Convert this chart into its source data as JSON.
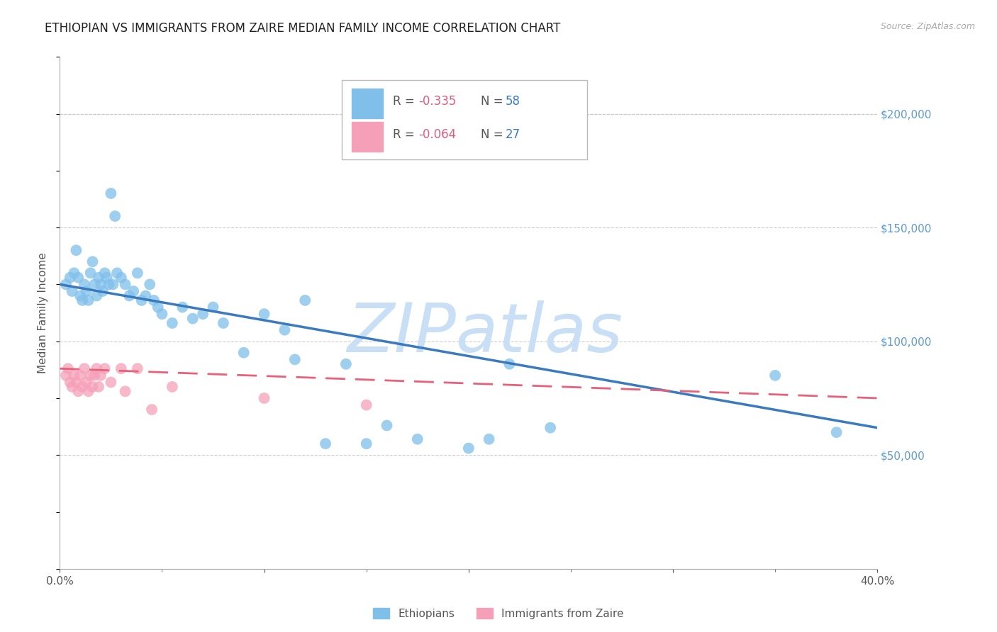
{
  "title": "ETHIOPIAN VS IMMIGRANTS FROM ZAIRE MEDIAN FAMILY INCOME CORRELATION CHART",
  "source": "Source: ZipAtlas.com",
  "ylabel": "Median Family Income",
  "xlim": [
    0.0,
    0.4
  ],
  "ylim": [
    0,
    225000
  ],
  "yticks": [
    50000,
    100000,
    150000,
    200000
  ],
  "ytick_labels": [
    "$50,000",
    "$100,000",
    "$150,000",
    "$200,000"
  ],
  "blue_color": "#7fbfea",
  "pink_color": "#f5a0b8",
  "line_blue": "#3a7abf",
  "line_pink": "#e8607a",
  "watermark": "ZIPatlas",
  "watermark_color": "#c8dff5",
  "background_color": "#ffffff",
  "grid_color": "#cccccc",
  "ethiopians_x": [
    0.003,
    0.005,
    0.006,
    0.007,
    0.008,
    0.009,
    0.01,
    0.011,
    0.012,
    0.013,
    0.014,
    0.015,
    0.016,
    0.017,
    0.018,
    0.019,
    0.02,
    0.021,
    0.022,
    0.023,
    0.024,
    0.025,
    0.026,
    0.027,
    0.028,
    0.03,
    0.032,
    0.034,
    0.036,
    0.038,
    0.04,
    0.042,
    0.044,
    0.046,
    0.048,
    0.05,
    0.055,
    0.06,
    0.065,
    0.07,
    0.075,
    0.08,
    0.09,
    0.1,
    0.11,
    0.115,
    0.12,
    0.13,
    0.14,
    0.15,
    0.16,
    0.175,
    0.2,
    0.21,
    0.22,
    0.24,
    0.35,
    0.38
  ],
  "ethiopians_y": [
    125000,
    128000,
    122000,
    130000,
    140000,
    128000,
    120000,
    118000,
    125000,
    122000,
    118000,
    130000,
    135000,
    125000,
    120000,
    128000,
    125000,
    122000,
    130000,
    128000,
    125000,
    165000,
    125000,
    155000,
    130000,
    128000,
    125000,
    120000,
    122000,
    130000,
    118000,
    120000,
    125000,
    118000,
    115000,
    112000,
    108000,
    115000,
    110000,
    112000,
    115000,
    108000,
    95000,
    112000,
    105000,
    92000,
    118000,
    55000,
    90000,
    55000,
    63000,
    57000,
    53000,
    57000,
    90000,
    62000,
    85000,
    60000
  ],
  "zaire_x": [
    0.003,
    0.004,
    0.005,
    0.006,
    0.007,
    0.008,
    0.009,
    0.01,
    0.011,
    0.012,
    0.013,
    0.014,
    0.015,
    0.016,
    0.017,
    0.018,
    0.019,
    0.02,
    0.022,
    0.025,
    0.03,
    0.032,
    0.038,
    0.045,
    0.055,
    0.1,
    0.15
  ],
  "zaire_y": [
    85000,
    88000,
    82000,
    80000,
    85000,
    82000,
    78000,
    85000,
    80000,
    88000,
    82000,
    78000,
    85000,
    80000,
    85000,
    88000,
    80000,
    85000,
    88000,
    82000,
    88000,
    78000,
    88000,
    70000,
    80000,
    75000,
    72000
  ],
  "eth_line_x0": 0.0,
  "eth_line_y0": 125000,
  "eth_line_x1": 0.4,
  "eth_line_y1": 62000,
  "zaire_line_x0": 0.0,
  "zaire_line_y0": 88000,
  "zaire_line_x1": 0.4,
  "zaire_line_y1": 75000
}
